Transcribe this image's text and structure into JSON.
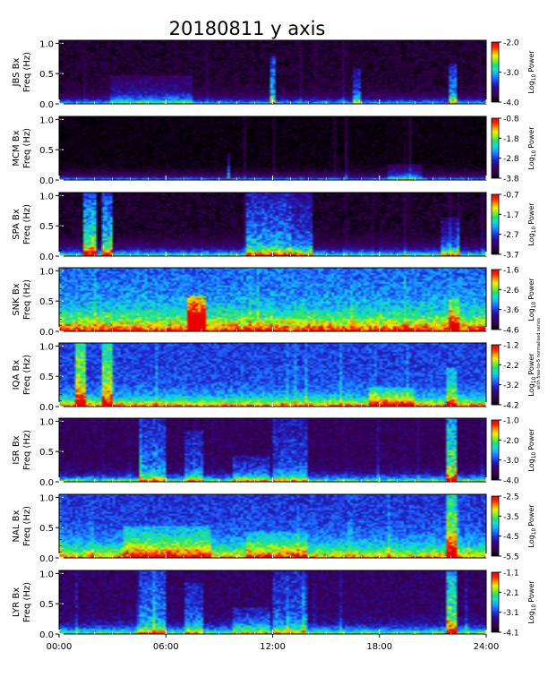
{
  "figure": {
    "title": "20180811 y axis",
    "side_note": "with free-to-5 normalised series",
    "colorbar_label_prefix": "Log",
    "colorbar_label_sub": "10",
    "colorbar_label_suffix": "Power"
  },
  "palette": [
    "#000000",
    "#2b0040",
    "#3a005e",
    "#2a0b8a",
    "#1f25c8",
    "#1e60ff",
    "#16a6ff",
    "#10e0d8",
    "#20e070",
    "#88f020",
    "#f0f000",
    "#ff9000",
    "#ff2000",
    "#e80000"
  ],
  "chart_data": [
    {
      "type": "heatmap",
      "station": "JBS",
      "component": "Bx",
      "ylabel_line1": "JBS Bx",
      "ylabel_line2": "Freq (Hz)",
      "yticks": [
        "0.0",
        "0.5",
        "1.0"
      ],
      "ylim": [
        0,
        1.05
      ],
      "xlim": [
        0,
        24
      ],
      "colorbar": {
        "min": -4.0,
        "max": -2.0,
        "ticks": [
          "-2.0",
          "-3.0",
          "-4.0"
        ]
      },
      "bg": 0.06,
      "floor": 0.42,
      "floor_height": 0.08,
      "noise": 0.05,
      "events": [
        {
          "t0": 2.8,
          "t1": 7.5,
          "amp": 0.18,
          "fmax": 0.45
        },
        {
          "t0": 11.8,
          "t1": 12.1,
          "amp": 0.45,
          "fmax": 0.75
        },
        {
          "t0": 16.5,
          "t1": 17.0,
          "amp": 0.3,
          "fmax": 0.55
        },
        {
          "t0": 22.0,
          "t1": 22.4,
          "amp": 0.4,
          "fmax": 0.65
        }
      ]
    },
    {
      "type": "heatmap",
      "station": "MCM",
      "component": "Bx",
      "ylabel_line1": "MCM Bx",
      "ylabel_line2": "Freq (Hz)",
      "yticks": [
        "0.0",
        "0.5",
        "1.0"
      ],
      "ylim": [
        0,
        1.05
      ],
      "xlim": [
        0,
        24
      ],
      "colorbar": {
        "min": -3.8,
        "max": -0.8,
        "ticks": [
          "-0.8",
          "-1.8",
          "-2.8",
          "-3.8"
        ]
      },
      "bg": 0.02,
      "floor": 0.4,
      "floor_height": 0.06,
      "noise": 0.03,
      "events": [
        {
          "t0": 8.2,
          "t1": 8.3,
          "amp": 0.8,
          "fmax": 1.0
        },
        {
          "t0": 17.1,
          "t1": 17.2,
          "amp": 0.8,
          "fmax": 1.0
        },
        {
          "t0": 9.5,
          "t1": 9.6,
          "amp": 0.35,
          "fmax": 0.4
        },
        {
          "t0": 18.5,
          "t1": 20.5,
          "amp": 0.2,
          "fmax": 0.25
        }
      ]
    },
    {
      "type": "heatmap",
      "station": "SPA",
      "component": "Bx",
      "ylabel_line1": "SPA Bx",
      "ylabel_line2": "Freq (Hz)",
      "yticks": [
        "0.0",
        "0.5",
        "1.0"
      ],
      "ylim": [
        0,
        1.05
      ],
      "xlim": [
        0,
        24
      ],
      "colorbar": {
        "min": -3.7,
        "max": -0.7,
        "ticks": [
          "-0.7",
          "-1.7",
          "-2.7",
          "-3.7"
        ]
      },
      "bg": 0.05,
      "floor": 0.55,
      "floor_height": 0.1,
      "noise": 0.05,
      "events": [
        {
          "t0": 1.3,
          "t1": 2.0,
          "amp": 0.55,
          "fmax": 1.0
        },
        {
          "t0": 2.4,
          "t1": 2.9,
          "amp": 0.5,
          "fmax": 1.0
        },
        {
          "t0": 10.5,
          "t1": 13.0,
          "amp": 0.4,
          "fmax": 1.0
        },
        {
          "t0": 13.0,
          "t1": 14.3,
          "amp": 0.32,
          "fmax": 1.0
        },
        {
          "t0": 21.5,
          "t1": 22.5,
          "amp": 0.25,
          "fmax": 0.6
        }
      ]
    },
    {
      "type": "heatmap",
      "station": "SNK",
      "component": "Bx",
      "ylabel_line1": "SNK Bx",
      "ylabel_line2": "Freq (Hz)",
      "yticks": [
        "0.0",
        "0.5",
        "1.0"
      ],
      "ylim": [
        0,
        1.05
      ],
      "xlim": [
        0,
        24
      ],
      "colorbar": {
        "min": -4.6,
        "max": -1.6,
        "ticks": [
          "-1.6",
          "-2.6",
          "-3.6",
          "-4.6"
        ]
      },
      "bg": 0.38,
      "floor": 0.58,
      "floor_height": 0.25,
      "noise": 0.1,
      "events": [
        {
          "t0": 7.2,
          "t1": 8.2,
          "amp": 0.55,
          "fmax": 0.55
        },
        {
          "t0": 22.0,
          "t1": 22.6,
          "amp": 0.25,
          "fmax": 0.5
        }
      ]
    },
    {
      "type": "heatmap",
      "station": "IQA",
      "component": "Bx",
      "ylabel_line1": "IQA Bx",
      "ylabel_line2": "Freq (Hz)",
      "yticks": [
        "0.0",
        "0.5",
        "1.0"
      ],
      "ylim": [
        0,
        1.05
      ],
      "xlim": [
        0,
        24
      ],
      "colorbar": {
        "min": -4.2,
        "max": -1.2,
        "ticks": [
          "-1.2",
          "-2.2",
          "-3.2",
          "-4.2"
        ]
      },
      "bg": 0.34,
      "floor": 0.55,
      "floor_height": 0.12,
      "noise": 0.08,
      "events": [
        {
          "t0": 0.8,
          "t1": 1.5,
          "amp": 0.42,
          "fmax": 1.0
        },
        {
          "t0": 2.4,
          "t1": 2.9,
          "amp": 0.4,
          "fmax": 1.0
        },
        {
          "t0": 17.5,
          "t1": 20.0,
          "amp": 0.22,
          "fmax": 0.3
        },
        {
          "t0": 21.8,
          "t1": 22.4,
          "amp": 0.25,
          "fmax": 0.6
        }
      ]
    },
    {
      "type": "heatmap",
      "station": "ISR",
      "component": "Bx",
      "ylabel_line1": "ISR Bx",
      "ylabel_line2": "Freq (Hz)",
      "yticks": [
        "0.0",
        "0.5",
        "1.0"
      ],
      "ylim": [
        0,
        1.05
      ],
      "xlim": [
        0,
        24
      ],
      "colorbar": {
        "min": -4.0,
        "max": -1.0,
        "ticks": [
          "-1.0",
          "-2.0",
          "-3.0",
          "-4.0"
        ]
      },
      "bg": 0.14,
      "floor": 0.5,
      "floor_height": 0.08,
      "noise": 0.07,
      "events": [
        {
          "t0": 4.5,
          "t1": 6.0,
          "amp": 0.28,
          "fmax": 1.0
        },
        {
          "t0": 7.0,
          "t1": 8.0,
          "amp": 0.22,
          "fmax": 0.8
        },
        {
          "t0": 9.8,
          "t1": 11.8,
          "amp": 0.2,
          "fmax": 0.4
        },
        {
          "t0": 12.0,
          "t1": 14.0,
          "amp": 0.22,
          "fmax": 1.0
        },
        {
          "t0": 21.8,
          "t1": 22.4,
          "amp": 0.55,
          "fmax": 1.0
        }
      ]
    },
    {
      "type": "heatmap",
      "station": "NAL",
      "component": "Bx",
      "ylabel_line1": "NAL Bx",
      "ylabel_line2": "Freq (Hz)",
      "yticks": [
        "0.0",
        "0.5",
        "1.0"
      ],
      "ylim": [
        0,
        1.05
      ],
      "xlim": [
        0,
        24
      ],
      "colorbar": {
        "min": -5.5,
        "max": -2.5,
        "ticks": [
          "-2.5",
          "-3.5",
          "-4.5",
          "-5.5"
        ]
      },
      "bg": 0.32,
      "floor": 0.52,
      "floor_height": 0.2,
      "noise": 0.08,
      "events": [
        {
          "t0": 3.5,
          "t1": 8.5,
          "amp": 0.2,
          "fmax": 0.5
        },
        {
          "t0": 10.5,
          "t1": 14.0,
          "amp": 0.15,
          "fmax": 0.4
        },
        {
          "t0": 21.8,
          "t1": 22.4,
          "amp": 0.42,
          "fmax": 1.0
        }
      ]
    },
    {
      "type": "heatmap",
      "station": "LYR",
      "component": "Bx",
      "ylabel_line1": "LYR Bx",
      "ylabel_line2": "Freq (Hz)",
      "yticks": [
        "0.0",
        "0.5",
        "1.0"
      ],
      "ylim": [
        0,
        1.05
      ],
      "xlim": [
        0,
        24
      ],
      "colorbar": {
        "min": -4.1,
        "max": -1.1,
        "ticks": [
          "-1.1",
          "-2.1",
          "-3.1",
          "-4.1"
        ]
      },
      "bg": 0.16,
      "floor": 0.48,
      "floor_height": 0.1,
      "noise": 0.07,
      "events": [
        {
          "t0": 4.5,
          "t1": 6.0,
          "amp": 0.28,
          "fmax": 1.0
        },
        {
          "t0": 7.0,
          "t1": 8.0,
          "amp": 0.22,
          "fmax": 0.8
        },
        {
          "t0": 9.8,
          "t1": 11.8,
          "amp": 0.2,
          "fmax": 0.4
        },
        {
          "t0": 12.0,
          "t1": 14.0,
          "amp": 0.22,
          "fmax": 1.0
        },
        {
          "t0": 21.8,
          "t1": 22.4,
          "amp": 0.55,
          "fmax": 1.0
        }
      ]
    }
  ],
  "x_axis": {
    "ticks": [
      0,
      6,
      12,
      18,
      24
    ],
    "tick_labels": [
      "00:00",
      "06:00",
      "12:00",
      "18:00",
      "24:00"
    ]
  }
}
